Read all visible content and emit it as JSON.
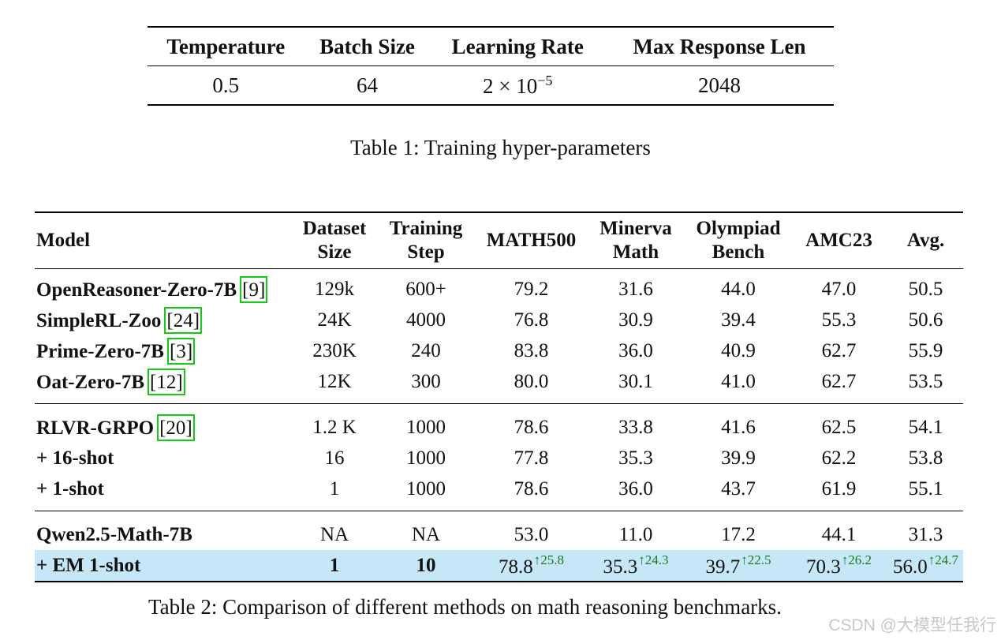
{
  "table1": {
    "headers": [
      "Temperature",
      "Batch Size",
      "Learning Rate",
      "Max Response Len"
    ],
    "values": [
      "0.5",
      "64",
      "2 × 10",
      "2048"
    ],
    "lr_exponent": "−5",
    "caption": "Table 1: Training hyper-parameters"
  },
  "table2": {
    "headers": {
      "model": "Model",
      "dataset": [
        "Dataset",
        "Size"
      ],
      "training": [
        "Training",
        "Step"
      ],
      "math500": "MATH500",
      "minerva": [
        "Minerva",
        "Math"
      ],
      "olympiad": [
        "Olympiad",
        "Bench"
      ],
      "amc23": "AMC23",
      "avg": "Avg."
    },
    "rows": [
      {
        "model": "OpenReasoner-Zero-7B",
        "cite": "9",
        "dataset": "129k",
        "step": "600+",
        "math500": "79.2",
        "minerva": "31.6",
        "olympiad": "44.0",
        "amc23": "47.0",
        "avg": "50.5"
      },
      {
        "model": "SimpleRL-Zoo",
        "cite": "24",
        "dataset": "24K",
        "step": "4000",
        "math500": "76.8",
        "minerva": "30.9",
        "olympiad": "39.4",
        "amc23": "55.3",
        "avg": "50.6"
      },
      {
        "model": "Prime-Zero-7B",
        "cite": "3",
        "dataset": "230K",
        "step": "240",
        "math500": "83.8",
        "minerva": "36.0",
        "olympiad": "40.9",
        "amc23": "62.7",
        "avg": "55.9"
      },
      {
        "model": "Oat-Zero-7B",
        "cite": "12",
        "dataset": "12K",
        "step": "300",
        "math500": "80.0",
        "minerva": "30.1",
        "olympiad": "41.0",
        "amc23": "62.7",
        "avg": "53.5"
      },
      {
        "model": "RLVR-GRPO",
        "cite": "20",
        "dataset": "1.2 K",
        "step": "1000",
        "math500": "78.6",
        "minerva": "33.8",
        "olympiad": "41.6",
        "amc23": "62.5",
        "avg": "54.1"
      },
      {
        "model": "+ 16-shot",
        "dataset": "16",
        "step": "1000",
        "math500": "77.8",
        "minerva": "35.3",
        "olympiad": "39.9",
        "amc23": "62.2",
        "avg": "53.8"
      },
      {
        "model": "+ 1-shot",
        "dataset": "1",
        "step": "1000",
        "math500": "78.6",
        "minerva": "36.0",
        "olympiad": "43.7",
        "amc23": "61.9",
        "avg": "55.1"
      },
      {
        "model": "Qwen2.5-Math-7B",
        "dataset": "NA",
        "step": "NA",
        "math500": "53.0",
        "minerva": "11.0",
        "olympiad": "17.2",
        "amc23": "44.1",
        "avg": "31.3"
      },
      {
        "model": "+ EM 1-shot",
        "dataset": "1",
        "step": "10",
        "math500": "78.8",
        "minerva": "35.3",
        "olympiad": "39.7",
        "amc23": "70.3",
        "avg": "56.0",
        "gains": {
          "math500": "↑25.8",
          "minerva": "↑24.3",
          "olympiad": "↑22.5",
          "amc23": "↑26.2",
          "avg": "↑24.7"
        }
      }
    ],
    "caption": "Table 2: Comparison of different methods on math reasoning benchmarks."
  },
  "watermark": "CSDN @大模型任我行",
  "colors": {
    "highlight_row": "#c6e7f7",
    "citation_box": "#11cc11",
    "gain_text": "#1a7a1a"
  }
}
